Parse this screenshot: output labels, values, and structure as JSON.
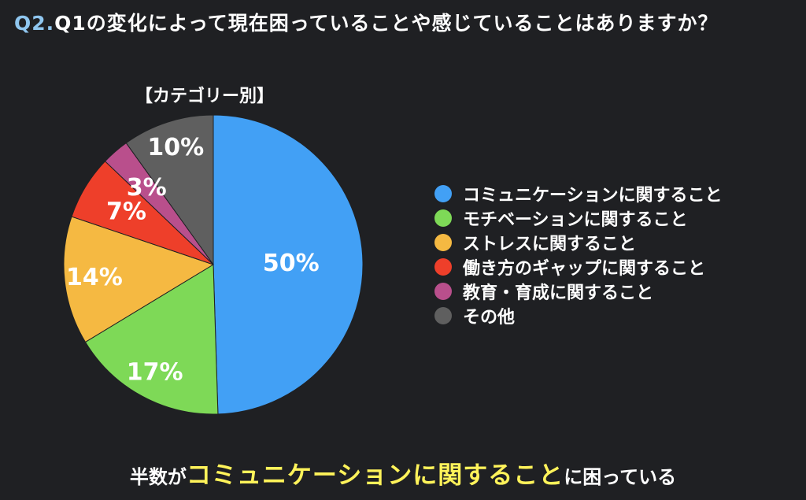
{
  "question": {
    "number": "Q2.",
    "text": "Q1の変化によって現在困っていることや感じていることはありますか？"
  },
  "chart_data": {
    "type": "pie",
    "title": "【カテゴリー別】",
    "series": [
      {
        "name": "コミュニケーションに関すること",
        "value": 50,
        "label": "50%",
        "color": "#42a0f5"
      },
      {
        "name": "モチベーションに関すること",
        "value": 17,
        "label": "17%",
        "color": "#7ed957"
      },
      {
        "name": "ストレスに関すること",
        "value": 14,
        "label": "14%",
        "color": "#f5b942"
      },
      {
        "name": "働き方のギャップに関すること",
        "value": 7,
        "label": "7%",
        "color": "#ee3f2a"
      },
      {
        "name": "教育・育成に関すること",
        "value": 3,
        "label": "3%",
        "color": "#b94f8c"
      },
      {
        "name": "その他",
        "value": 10,
        "label": "10%",
        "color": "#5f5f5f"
      }
    ],
    "legend_position": "right"
  },
  "conclusion": {
    "pre": "半数が",
    "highlight": "コミュニケーションに関すること",
    "post": "に困っている"
  }
}
